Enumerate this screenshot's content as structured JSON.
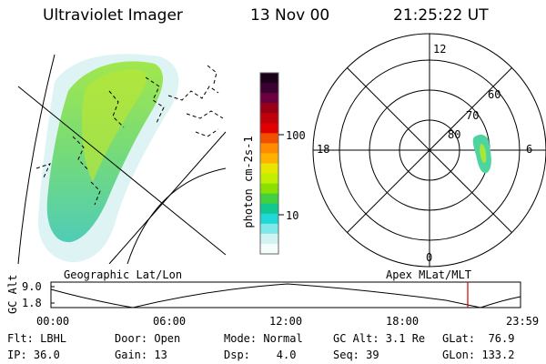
{
  "header": {
    "title": "Ultraviolet Imager",
    "date": "13 Nov 00",
    "time": "21:25:22 UT"
  },
  "geo_panel": {
    "label": "Geographic Lat/Lon"
  },
  "polar_panel": {
    "label": "Apex MLat/MLT",
    "mlt_labels": [
      "12",
      "18",
      "6",
      "0"
    ],
    "mlat_labels": [
      "60",
      "70",
      "80"
    ]
  },
  "colorbar": {
    "unit_label": "photon cm-2s-1",
    "ticks": [
      "100",
      "10"
    ],
    "colors": [
      "#1a0018",
      "#3a0030",
      "#6a0040",
      "#990015",
      "#c0000a",
      "#e00000",
      "#f05000",
      "#ff8c00",
      "#ffb000",
      "#e6e600",
      "#c0f000",
      "#8ae000",
      "#40d040",
      "#10c890",
      "#20d8d8",
      "#80e8e8",
      "#d0f4f4",
      "#f4fcfc"
    ]
  },
  "altitude_plot": {
    "ylabel": "GC Alt",
    "yticks": [
      "9.0",
      "1.8"
    ],
    "xticks": [
      "00:00",
      "06:00",
      "12:00",
      "18:00",
      "23:59"
    ],
    "marker_color": "#cc0000"
  },
  "footer": {
    "row1": {
      "flt": "Flt: LBHL",
      "door": "Door: Open",
      "mode": "Mode: Normal",
      "gcalt": "GC Alt: 3.1 Re",
      "glat": "GLat:  76.9"
    },
    "row2": {
      "ip": "IP: 36.0",
      "gain": "Gain: 13",
      "dsp": "Dsp:    4.0",
      "seq": "Seq: 39",
      "glon": "GLon: 133.2"
    }
  }
}
